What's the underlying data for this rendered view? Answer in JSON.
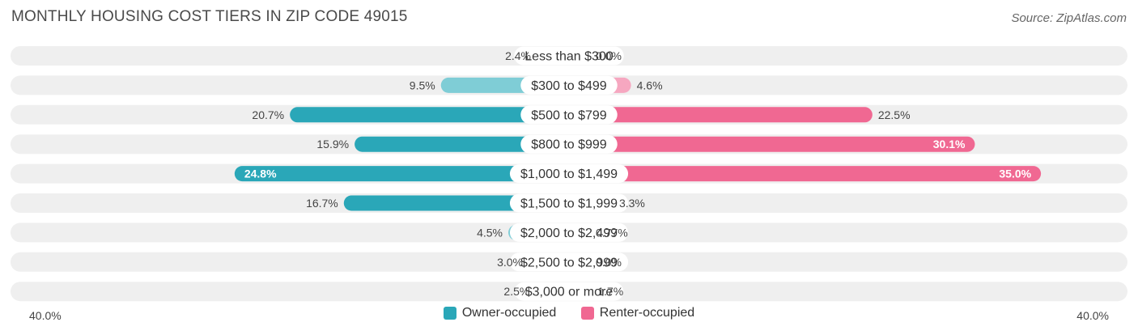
{
  "header": {
    "title": "MONTHLY HOUSING COST TIERS IN ZIP CODE 49015",
    "source": "Source: ZipAtlas.com"
  },
  "colors": {
    "owner_strong": "#2aa7b8",
    "owner_light": "#7fcdd6",
    "renter_strong": "#f06892",
    "renter_light": "#f6a7c0",
    "track": "#efefef"
  },
  "chart_data": {
    "type": "bar",
    "orientation": "diverging-horizontal",
    "title": "MONTHLY HOUSING COST TIERS IN ZIP CODE 49015",
    "categories": [
      "Less than $300",
      "$300 to $499",
      "$500 to $799",
      "$800 to $999",
      "$1,000 to $1,499",
      "$1,500 to $1,999",
      "$2,000 to $2,499",
      "$2,500 to $2,999",
      "$3,000 or more"
    ],
    "series": [
      {
        "name": "Owner-occupied",
        "values": [
          2.4,
          9.5,
          20.7,
          15.9,
          24.8,
          16.7,
          4.5,
          3.0,
          2.5
        ],
        "labels": [
          "2.4%",
          "9.5%",
          "20.7%",
          "15.9%",
          "24.8%",
          "16.7%",
          "4.5%",
          "3.0%",
          "2.5%"
        ]
      },
      {
        "name": "Renter-occupied",
        "values": [
          0.0,
          4.6,
          22.5,
          30.1,
          35.0,
          3.3,
          0.77,
          0.0,
          1.7
        ],
        "labels": [
          "0.0%",
          "4.6%",
          "22.5%",
          "30.1%",
          "35.0%",
          "3.3%",
          "0.77%",
          "0.0%",
          "1.7%"
        ]
      }
    ],
    "xlim": [
      -40,
      40
    ],
    "axis_labels": {
      "left": "40.0%",
      "right": "40.0%"
    },
    "legend_position": "bottom-center"
  }
}
